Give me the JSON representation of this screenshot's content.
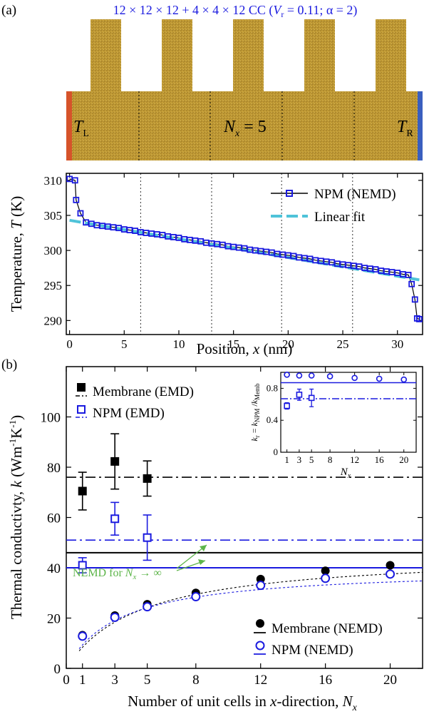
{
  "panel_a": {
    "label": "(a)",
    "structure_title_parts": [
      "12 × 12 × 12 + 4 × 4 × 12 CC (",
      "V",
      "r",
      " = 0.11; α = 2)"
    ],
    "TL": {
      "main": "T",
      "sub": "L"
    },
    "TR": {
      "main": "T",
      "sub": "R"
    },
    "Nx": {
      "main": "N",
      "sub": "x",
      "rest": " = 5"
    },
    "colors": {
      "membrane": "#c9a23a",
      "hot": "#d6532a",
      "cold": "#3a5fbf",
      "npm": "#1a1adf",
      "fit": "#4fc3d9"
    }
  },
  "panel_b": {
    "label": "(b)"
  },
  "chart_data": [
    {
      "type": "line",
      "xlabel_parts": [
        "Position, ",
        "x",
        " (nm)"
      ],
      "ylabel_parts": [
        "Temperature, ",
        "T",
        " (K)"
      ],
      "xlim": [
        -0.3,
        32.3
      ],
      "ylim": [
        288,
        311
      ],
      "xticks": [
        0,
        5,
        10,
        15,
        20,
        25,
        30
      ],
      "yticks": [
        290,
        295,
        300,
        305,
        310
      ],
      "grid": false,
      "legend_position": "top-right",
      "legend": [
        "NPM (NEMD)",
        "Linear fit"
      ],
      "vlines": [
        6.5,
        13.0,
        19.4,
        25.9
      ],
      "series": [
        {
          "name": "NPM (NEMD)",
          "x": [
            0.0,
            0.5,
            0.6,
            1.0,
            1.5,
            2.0,
            2.5,
            3.0,
            3.5,
            4.0,
            4.5,
            5.0,
            5.5,
            6.0,
            6.5,
            7.0,
            7.5,
            8.0,
            8.5,
            9.0,
            9.5,
            10.0,
            10.5,
            11.0,
            11.5,
            12.0,
            12.5,
            13.0,
            13.5,
            14.0,
            14.5,
            15.0,
            15.5,
            16.0,
            16.5,
            17.0,
            17.5,
            18.0,
            18.5,
            19.0,
            19.5,
            20.0,
            20.5,
            21.0,
            21.5,
            22.0,
            22.5,
            23.0,
            23.5,
            24.0,
            24.5,
            25.0,
            25.5,
            26.0,
            26.5,
            27.0,
            27.5,
            28.0,
            28.5,
            29.0,
            29.5,
            30.0,
            30.5,
            31.0,
            31.3,
            31.6,
            31.8,
            32.0
          ],
          "y": [
            310.2,
            310.0,
            307.2,
            305.3,
            304.0,
            303.8,
            303.6,
            303.5,
            303.4,
            303.3,
            303.2,
            303.0,
            302.9,
            302.8,
            302.6,
            302.5,
            302.4,
            302.3,
            302.2,
            302.0,
            301.9,
            301.8,
            301.6,
            301.5,
            301.4,
            301.3,
            301.1,
            301.0,
            300.9,
            300.8,
            300.6,
            300.5,
            300.4,
            300.3,
            300.1,
            300.0,
            299.9,
            299.8,
            299.7,
            299.5,
            299.4,
            299.3,
            299.2,
            299.0,
            298.9,
            298.8,
            298.6,
            298.5,
            298.4,
            298.3,
            298.1,
            298.0,
            297.9,
            297.8,
            297.7,
            297.5,
            297.4,
            297.3,
            297.1,
            297.0,
            296.9,
            296.8,
            296.6,
            296.5,
            295.2,
            293.0,
            290.3,
            290.2
          ]
        },
        {
          "name": "Linear fit",
          "x": [
            0,
            32
          ],
          "y": [
            304.3,
            295.8
          ]
        }
      ]
    },
    {
      "type": "scatter",
      "xlabel_parts": [
        "Number of unit cells in ",
        "x",
        "-direction, ",
        "N",
        "x"
      ],
      "ylabel_parts": [
        "Thermal conductivty, ",
        "k",
        " (Wm",
        "-1",
        "K",
        "-1",
        ")"
      ],
      "xlim": [
        0,
        22
      ],
      "ylim": [
        0,
        120
      ],
      "xticks": [
        0,
        1,
        3,
        5,
        8,
        12,
        16,
        20
      ],
      "yticks": [
        0,
        20,
        40,
        60,
        80,
        100
      ],
      "grid": false,
      "legend_position": "top-left",
      "legend": [
        "Membrane (EMD)",
        "NPM (EMD)",
        "Membrane (NEMD)",
        "NPM (NEMD)"
      ],
      "annotation_parts": [
        "NEMD for ",
        "N",
        "x",
        " → ∞"
      ],
      "series": [
        {
          "name": "Membrane (EMD)",
          "x": [
            1,
            3,
            5
          ],
          "y": [
            70.5,
            82.3,
            75.5
          ],
          "err": [
            7.5,
            11,
            7
          ]
        },
        {
          "name": "NPM (EMD)",
          "x": [
            1,
            3,
            5
          ],
          "y": [
            41,
            59.5,
            52
          ],
          "err": [
            3,
            6.5,
            9
          ]
        },
        {
          "name": "Membrane (NEMD)",
          "x": [
            1,
            3,
            5,
            8,
            12,
            16,
            20
          ],
          "y": [
            13.2,
            21,
            25.5,
            30,
            35.5,
            38.8,
            41
          ]
        },
        {
          "name": "NPM (NEMD)",
          "x": [
            1,
            3,
            5,
            8,
            12,
            16,
            20
          ],
          "y": [
            12.8,
            20.3,
            24.5,
            28.5,
            33,
            35.8,
            37.5
          ]
        }
      ],
      "hlines": [
        {
          "name": "Membrane (EMD) mean",
          "y": 76,
          "style": "dashdot",
          "color": "#000000"
        },
        {
          "name": "NPM (EMD) mean",
          "y": 51,
          "style": "dashdot",
          "color": "#1a1adf"
        },
        {
          "name": "Membrane (NEMD) N→∞",
          "y": 46,
          "style": "solid",
          "color": "#000000"
        },
        {
          "name": "NPM (NEMD) N→∞",
          "y": 40,
          "style": "solid",
          "color": "#1a1adf"
        }
      ],
      "fit_curves": [
        {
          "name": "Membrane fit",
          "kinf": 46,
          "a": 4.5,
          "color": "#000000"
        },
        {
          "name": "NPM fit",
          "kinf": 40,
          "a": 3.3,
          "color": "#1a1adf"
        }
      ]
    },
    {
      "type": "scatter",
      "title": "inset",
      "xlabel_parts": [
        "N",
        "x"
      ],
      "ylabel_parts": [
        "k",
        "r",
        " = ",
        "k",
        "NPM",
        " /",
        "k",
        "Memb"
      ],
      "xlim": [
        0,
        22
      ],
      "ylim": [
        0,
        1.0
      ],
      "xticks": [
        1,
        3,
        5,
        8,
        12,
        16,
        20
      ],
      "yticks": [
        0,
        0.4,
        0.8
      ],
      "ytick_labels": [
        "0",
        "0.4",
        "0.8"
      ],
      "series": [
        {
          "name": "EMD ratio",
          "x": [
            1,
            3,
            5
          ],
          "y": [
            0.58,
            0.72,
            0.68
          ],
          "err": [
            0.04,
            0.07,
            0.11
          ]
        },
        {
          "name": "NEMD ratio",
          "x": [
            1,
            3,
            5,
            8,
            12,
            16,
            20
          ],
          "y": [
            0.97,
            0.96,
            0.96,
            0.95,
            0.93,
            0.92,
            0.91
          ]
        }
      ],
      "hlines": [
        {
          "y": 0.87,
          "style": "solid"
        },
        {
          "y": 0.67,
          "style": "dashdot"
        }
      ]
    }
  ]
}
